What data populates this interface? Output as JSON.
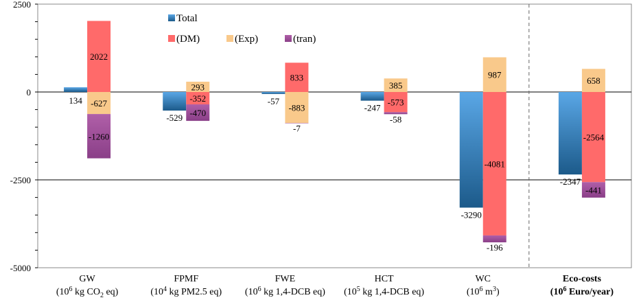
{
  "chart_data": {
    "type": "bar",
    "title": "",
    "xlabel": "",
    "ylabel": "",
    "ylim": [
      -5000,
      2500
    ],
    "yticks": [
      {
        "value": 2500,
        "label": "2500"
      },
      {
        "value": 0,
        "label": "0"
      },
      {
        "value": -2500,
        "label": "-2500"
      },
      {
        "value": -5000,
        "label": "-5000"
      }
    ],
    "reference_lines": [
      0,
      -2500
    ],
    "series": [
      {
        "name": "Total",
        "legend_label": "Total",
        "color_top": "#5aa7e6",
        "color_bottom": "#1c5a8a"
      },
      {
        "name": "DM",
        "legend_label": "(DM)",
        "color_top": "#ff6a6a",
        "color_bottom": "#ff6a6a"
      },
      {
        "name": "Exp",
        "legend_label": "(Exp)",
        "color_top": "#f9c98b",
        "color_bottom": "#f9c98b"
      },
      {
        "name": "tran",
        "legend_label": "(tran)",
        "color_top": "#b05fa8",
        "color_bottom": "#8a3f88"
      }
    ],
    "categories": [
      {
        "name": "GW",
        "unit_pre": "(10",
        "unit_exp": "6",
        "unit_mid": " kg CO",
        "unit_sub": "2",
        "unit_post": " eq)",
        "bold": false,
        "total": {
          "value": 134,
          "label": "134"
        },
        "stack": [
          {
            "series": "DM",
            "value": 2022,
            "label": "2022"
          },
          {
            "series": "Exp",
            "value": -627,
            "label": "-627"
          },
          {
            "series": "tran",
            "value": -1260,
            "label": "-1260"
          }
        ]
      },
      {
        "name": "FPMF",
        "unit_pre": "(10",
        "unit_exp": "4",
        "unit_mid": " kg PM2.5 eq)",
        "unit_sub": "",
        "unit_post": "",
        "bold": false,
        "total": {
          "value": -529,
          "label": "-529"
        },
        "stack": [
          {
            "series": "Exp",
            "value": 293,
            "label": "293"
          },
          {
            "series": "DM",
            "value": -352,
            "label": "-352"
          },
          {
            "series": "tran",
            "value": -470,
            "label": "-470"
          }
        ]
      },
      {
        "name": "FWE",
        "unit_pre": "(10",
        "unit_exp": "6",
        "unit_mid": " kg 1,4-DCB eq)",
        "unit_sub": "",
        "unit_post": "",
        "bold": false,
        "total": {
          "value": -57,
          "label": "-57"
        },
        "stack": [
          {
            "series": "DM",
            "value": 833,
            "label": "833"
          },
          {
            "series": "Exp",
            "value": -883,
            "label": "-883"
          },
          {
            "series": "tran",
            "value": -7,
            "label": "-7"
          }
        ]
      },
      {
        "name": "HCT",
        "unit_pre": "(10",
        "unit_exp": "5",
        "unit_mid": " kg 1,4-DCB eq)",
        "unit_sub": "",
        "unit_post": "",
        "bold": false,
        "total": {
          "value": -247,
          "label": "-247"
        },
        "stack": [
          {
            "series": "Exp",
            "value": 385,
            "label": "385"
          },
          {
            "series": "DM",
            "value": -573,
            "label": "-573"
          },
          {
            "series": "tran",
            "value": -58,
            "label": "-58"
          }
        ]
      },
      {
        "name": "WC",
        "unit_pre": "(10",
        "unit_exp": "6",
        "unit_mid": " m",
        "unit_sup2": "3",
        "unit_post": ")",
        "unit_sub": "",
        "bold": false,
        "total": {
          "value": -3290,
          "label": "-3290"
        },
        "stack": [
          {
            "series": "Exp",
            "value": 987,
            "label": "987"
          },
          {
            "series": "DM",
            "value": -4081,
            "label": "-4081"
          },
          {
            "series": "tran",
            "value": -196,
            "label": "-196"
          }
        ]
      },
      {
        "name": "Eco-costs",
        "unit_pre": "(10",
        "unit_exp": "6",
        "unit_mid": " Euro/year)",
        "unit_sub": "",
        "unit_post": "",
        "bold": true,
        "total": {
          "value": -2347,
          "label": "-2347"
        },
        "stack": [
          {
            "series": "Exp",
            "value": 658,
            "label": "658"
          },
          {
            "series": "DM",
            "value": -2564,
            "label": "-2564"
          },
          {
            "series": "tran",
            "value": -441,
            "label": "-441"
          }
        ]
      }
    ]
  }
}
